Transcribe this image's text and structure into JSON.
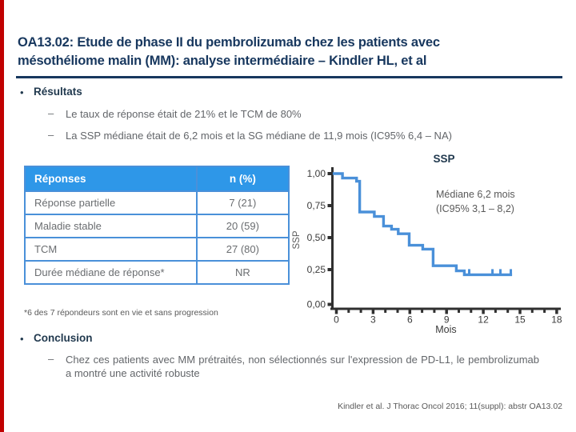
{
  "slide": {
    "title_line1": "OA13.02: Etude de phase II du pembrolizumab chez les patients avec",
    "title_line2": "mésothéliome malin (MM): analyse intermédiaire – Kindler HL, et al",
    "citation": "Kindler et al. J Thorac Oncol 2016; 11(suppl): abstr OA13.02",
    "bullet_glyph": "•",
    "dash_glyph": "–"
  },
  "colors": {
    "accent_red": "#C00000",
    "title_navy": "#17375E",
    "heading_navy": "#223A4F",
    "body_gray": "#63666A",
    "table_header_bg": "#2E97E8",
    "table_border": "#4A90D9",
    "curve_blue": "#4A90D9",
    "axis_dark": "#303030"
  },
  "results": {
    "heading": "Résultats",
    "bullets": [
      "Le taux de réponse était de 21% et le TCM de 80%",
      "La SSP médiane était de 6,2 mois et la SG médiane de 11,9 mois (IC95% 6,4 – NA)"
    ]
  },
  "table": {
    "header": [
      "Réponses",
      "n (%)"
    ],
    "rows": [
      [
        "Réponse partielle",
        "7 (21)"
      ],
      [
        "Maladie stable",
        "20 (59)"
      ],
      [
        "TCM",
        "27 (80)"
      ],
      [
        "Durée médiane de réponse*",
        "NR"
      ]
    ],
    "footnote": "*6 des 7 répondeurs sont en vie et sans progression"
  },
  "conclusion": {
    "heading": "Conclusion",
    "text": "Chez ces patients avec MM prétraités, non sélectionnés sur l'expression de PD-L1, le pembrolizumab a montré une activité robuste"
  },
  "chart_data": {
    "type": "line",
    "subtype": "kaplan-meier-step",
    "title": "SSP",
    "xlabel": "Mois",
    "ylabel": "SSP",
    "xlim": [
      0,
      18
    ],
    "ylim": [
      0,
      1
    ],
    "x_major_ticks": [
      0,
      3,
      6,
      9,
      12,
      15,
      18
    ],
    "x_minor_tick_every": 1,
    "y_ticks": [
      [
        "1,00",
        1.0
      ],
      [
        "0,75",
        0.75
      ],
      [
        "0,50",
        0.5
      ],
      [
        "0,25",
        0.25
      ],
      [
        "0,00",
        0.0
      ]
    ],
    "annotation_line1": "Médiane 6,2 mois",
    "annotation_line2": "(IC95% 3,1 – 8,2)",
    "median_ssp_months": 6.2,
    "series": [
      {
        "name": "SSP",
        "steps": [
          [
            -0.3,
            1.0
          ],
          [
            0.5,
            0.965
          ],
          [
            1.65,
            0.94
          ],
          [
            1.9,
            0.7
          ],
          [
            3.1,
            0.665
          ],
          [
            3.85,
            0.59
          ],
          [
            4.5,
            0.565
          ],
          [
            5.05,
            0.53
          ],
          [
            5.95,
            0.44
          ],
          [
            7.05,
            0.41
          ],
          [
            7.9,
            0.28
          ],
          [
            9.8,
            0.24
          ],
          [
            10.45,
            0.21
          ]
        ],
        "end_month": 14.35,
        "censor_marks_months": [
          10.85,
          12.75,
          13.4,
          14.25
        ],
        "censor_level": 0.21
      }
    ],
    "legend": "none",
    "grid": false
  }
}
